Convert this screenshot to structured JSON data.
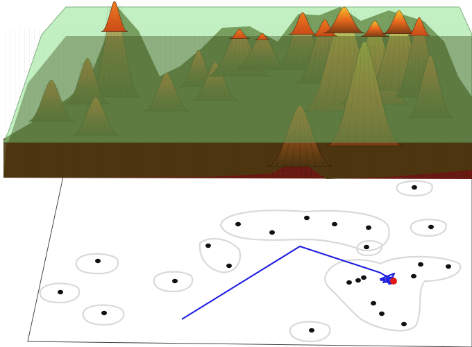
{
  "figure": {
    "surface_gradient": [
      "#3b2a0f",
      "#7a4a1a",
      "#c8561a",
      "#e8621c",
      "#f3c22a"
    ],
    "plane_color": "#8fe38f",
    "base_color": "#6b1a12",
    "path_color": "#1a1aff",
    "goal_color": "#e01818",
    "point_color": "#111111",
    "contour_color": "#d9d9d9",
    "num_points": 27,
    "num_peaks": 18
  }
}
